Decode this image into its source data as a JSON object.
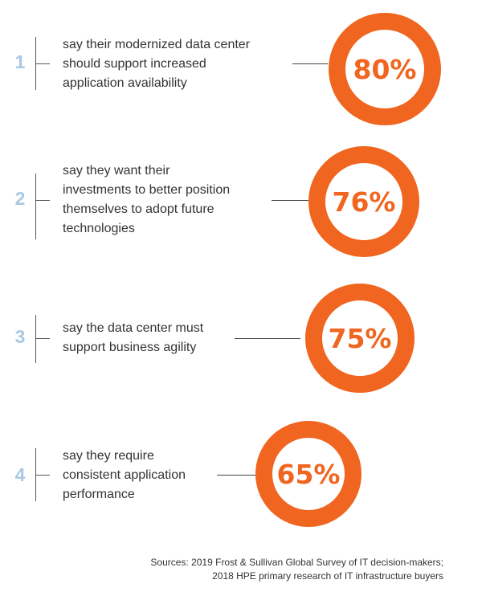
{
  "stats": [
    {
      "number": "1",
      "lines": [
        "say their modernized data center",
        "should support increased",
        "application availability"
      ],
      "percent": "80%"
    },
    {
      "number": "2",
      "lines": [
        "say they want their",
        "investments to better position",
        "themselves to adopt future",
        "technologies"
      ],
      "percent": "76%"
    },
    {
      "number": "3",
      "lines": [
        "say the data center must",
        "support business agility"
      ],
      "percent": "75%"
    },
    {
      "number": "4",
      "lines": [
        "say they require",
        "consistent application",
        "performance"
      ],
      "percent": "65%"
    }
  ],
  "sources": {
    "line1": "Sources: 2019 Frost & Sullivan Global Survey of IT decision-makers;",
    "line2": "2018 HPE primary research of IT infrastructure buyers"
  },
  "colors": {
    "accent": "#f0651f",
    "number": "#a9c8e4"
  }
}
